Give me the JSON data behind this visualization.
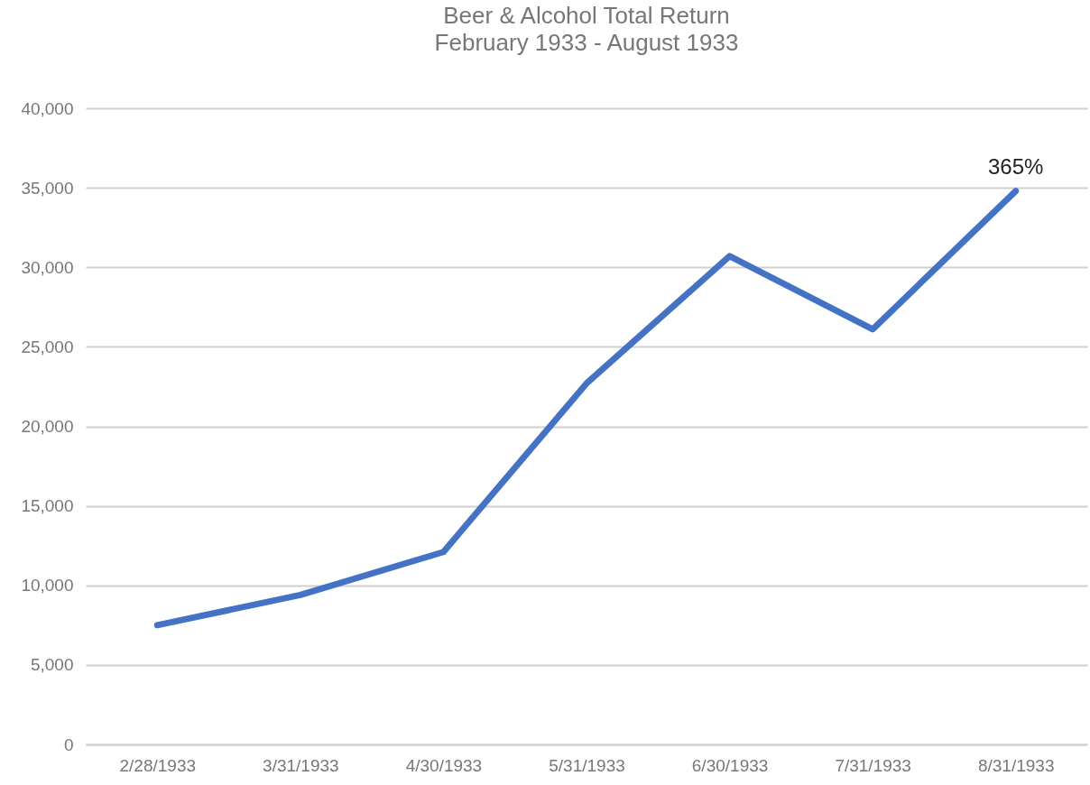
{
  "chart_data": {
    "type": "line",
    "title": "Beer & Alcohol Total Return",
    "subtitle": "February 1933 - August 1933",
    "categories": [
      "2/28/1933",
      "3/31/1933",
      "4/30/1933",
      "5/31/1933",
      "6/30/1933",
      "7/31/1933",
      "8/31/1933"
    ],
    "values": [
      7500,
      9400,
      12100,
      22700,
      30700,
      26100,
      34800
    ],
    "color": "#4472c4",
    "ylim": [
      0,
      40000
    ],
    "yticks": [
      0,
      {
        "value": 5000,
        "label": "5,000"
      },
      {
        "value": 10000,
        "label": "10,000"
      },
      {
        "value": 15000,
        "label": "15,000"
      },
      {
        "value": 20000,
        "label": "20,000"
      },
      {
        "value": 25000,
        "label": "25,000"
      },
      {
        "value": 30000,
        "label": "30,000"
      },
      {
        "value": 35000,
        "label": "35,000"
      },
      {
        "value": 40000,
        "label": "40,000"
      }
    ],
    "grid": "y",
    "annotations": [
      {
        "text": "365%",
        "x": "8/31/1933",
        "y": 34800
      }
    ]
  }
}
